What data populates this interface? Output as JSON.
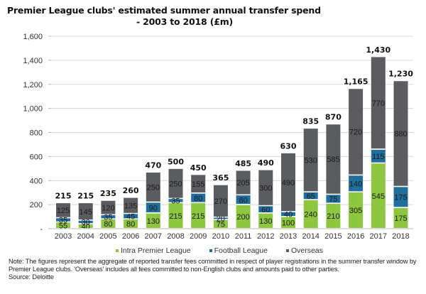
{
  "chart_data": {
    "type": "bar",
    "stacked": true,
    "title": "Premier League clubs' estimated summer annual transfer spend - 2003 to 2018 (£m)",
    "title_lines": [
      "Premier League clubs' estimated summer annual transfer spend",
      "- 2003 to 2018 (£m)"
    ],
    "xlabel": "",
    "ylabel": "",
    "ylim": [
      0,
      1600
    ],
    "yticks": [
      0,
      200,
      400,
      600,
      800,
      1000,
      1200,
      1400,
      1600
    ],
    "ytick_labels": [
      "-",
      "200",
      "400",
      "600",
      "800",
      "1,000",
      "1,200",
      "1,400",
      "1,600"
    ],
    "grid": true,
    "legend_position": "bottom",
    "categories": [
      "2003",
      "2004",
      "2005",
      "2006",
      "2007",
      "2008",
      "2009",
      "2010",
      "2011",
      "2012",
      "2013",
      "2014",
      "2015",
      "2016",
      "2017",
      "2018"
    ],
    "series": [
      {
        "name": "Intra Premier League",
        "color": "#8dc63f",
        "values": [
          55,
          40,
          80,
          80,
          130,
          215,
          215,
          75,
          200,
          130,
          100,
          240,
          210,
          305,
          545,
          175
        ]
      },
      {
        "name": "Football League",
        "color": "#1f6e9c",
        "values": [
          35,
          30,
          35,
          45,
          90,
          35,
          80,
          20,
          80,
          60,
          40,
          65,
          75,
          140,
          115,
          175
        ]
      },
      {
        "name": "Overseas",
        "color": "#5b5c60",
        "values": [
          125,
          145,
          120,
          135,
          250,
          250,
          155,
          270,
          205,
          300,
          490,
          530,
          585,
          720,
          770,
          880
        ]
      }
    ],
    "totals": [
      215,
      215,
      235,
      260,
      470,
      500,
      450,
      365,
      485,
      490,
      630,
      835,
      870,
      1165,
      1430,
      1230
    ],
    "total_labels": [
      "215",
      "215",
      "235",
      "260",
      "470",
      "500",
      "450",
      "365",
      "485",
      "490",
      "630",
      "835",
      "870",
      "1,165",
      "1,430",
      "1,230"
    ]
  },
  "note": {
    "text": "Note: The figures represent the aggregate of reported transfer fees committed in respect of player registrations in the summer transfer window by Premier League clubs. 'Overseas' includes all fees committed to non-English clubs and amounts paid to other parties.",
    "source": "Source: Deloitte"
  }
}
